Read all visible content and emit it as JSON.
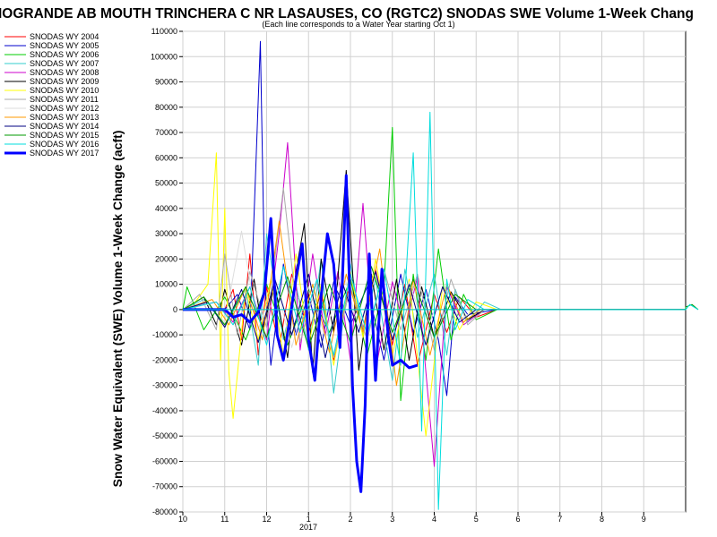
{
  "chart_data": {
    "type": "line",
    "title": "IOGRANDE AB MOUTH TRINCHERA C NR LASAUSES, CO (RGTC2) SNODAS SWE Volume 1-Week Chang",
    "subtitle": "(Each line corresponds to a Water Year starting Oct 1)",
    "ylabel": "Snow Water Equivalent (SWE) Volume 1-Week Change (acft)",
    "xlabel": "",
    "x_ticks": [
      "10",
      "11",
      "12",
      "1",
      "2",
      "3",
      "4",
      "5",
      "6",
      "7",
      "8",
      "9"
    ],
    "x_year_label": "2017",
    "xlim": [
      10,
      22.0
    ],
    "ylim": [
      -80000,
      110000
    ],
    "y_tick_step": 10000,
    "grid": true,
    "legend_position": "top-left",
    "series": [
      {
        "name": "SNODAS WY 2004",
        "color": "#ff0000",
        "width": 1,
        "x": [
          10.0,
          11.0,
          11.2,
          11.4,
          11.6,
          11.8,
          12.0,
          12.3,
          12.6,
          13.0,
          13.3,
          13.6,
          14.0,
          14.3,
          14.6,
          15.0,
          15.3,
          15.6,
          16.0,
          16.3,
          16.6,
          17.0,
          17.5,
          22.0
        ],
        "y": [
          0,
          0,
          8000,
          -12000,
          22000,
          -18000,
          9000,
          -15000,
          14000,
          -9000,
          7000,
          -20000,
          12000,
          -8000,
          16000,
          -14000,
          10000,
          -22000,
          6000,
          -9000,
          5000,
          -3000,
          0,
          0
        ]
      },
      {
        "name": "SNODAS WY 2005",
        "color": "#0000cc",
        "width": 1,
        "x": [
          10.0,
          11.0,
          11.3,
          11.6,
          11.75,
          11.85,
          11.95,
          12.1,
          12.4,
          12.7,
          13.0,
          13.3,
          13.6,
          14.0,
          14.4,
          14.8,
          15.2,
          15.5,
          15.8,
          16.1,
          16.3,
          16.5,
          16.8,
          17.5,
          22.0
        ],
        "y": [
          0,
          0,
          6000,
          -8000,
          60000,
          106000,
          12000,
          -22000,
          18000,
          -10000,
          6000,
          -15000,
          11000,
          -6000,
          9000,
          -20000,
          14000,
          -9000,
          8000,
          -12000,
          -34000,
          5000,
          -2000,
          0,
          0
        ]
      },
      {
        "name": "SNODAS WY 2006",
        "color": "#00cc00",
        "width": 1,
        "x": [
          10.0,
          10.1,
          10.5,
          11.0,
          11.5,
          12.0,
          12.5,
          13.0,
          13.5,
          14.0,
          14.4,
          14.8,
          15.0,
          15.2,
          15.5,
          15.8,
          16.1,
          16.4,
          16.7,
          17.0,
          17.5,
          22.0
        ],
        "y": [
          0,
          9000,
          -8000,
          5000,
          -12000,
          10000,
          -14000,
          8000,
          -9000,
          12000,
          -18000,
          9000,
          72000,
          -36000,
          14000,
          -20000,
          24000,
          -12000,
          6000,
          -4000,
          0,
          0
        ]
      },
      {
        "name": "SNODAS WY 2007",
        "color": "#33cccc",
        "width": 1,
        "x": [
          10.0,
          10.5,
          11.0,
          11.5,
          11.8,
          12.0,
          12.4,
          12.7,
          13.0,
          13.3,
          13.6,
          14.0,
          14.3,
          14.6,
          15.0,
          15.3,
          15.6,
          16.0,
          16.3,
          16.5,
          16.8,
          17.2,
          17.6,
          22.0
        ],
        "y": [
          0,
          4000,
          -6000,
          8000,
          -22000,
          30000,
          -12000,
          10000,
          -16000,
          20000,
          -33000,
          18000,
          -9000,
          12000,
          -28000,
          16000,
          -11000,
          14000,
          -18000,
          8000,
          -5000,
          3000,
          0,
          0
        ]
      },
      {
        "name": "SNODAS WY 2008",
        "color": "#cc00cc",
        "width": 1,
        "x": [
          10.0,
          10.8,
          11.2,
          11.6,
          12.0,
          12.3,
          12.5,
          12.8,
          13.1,
          13.4,
          13.7,
          14.0,
          14.3,
          14.6,
          15.0,
          15.3,
          15.6,
          16.0,
          16.3,
          16.7,
          17.2,
          22.0
        ],
        "y": [
          0,
          3000,
          -5000,
          9000,
          -12000,
          30000,
          66000,
          -16000,
          22000,
          -10000,
          15000,
          -20000,
          42000,
          -24000,
          11000,
          -8000,
          13000,
          -62000,
          9000,
          -6000,
          0,
          0
        ]
      },
      {
        "name": "SNODAS WY 2009",
        "color": "#000000",
        "width": 1,
        "x": [
          10.0,
          10.5,
          10.8,
          11.0,
          11.4,
          11.7,
          11.9,
          12.2,
          12.5,
          12.7,
          12.9,
          13.1,
          13.3,
          13.6,
          13.9,
          14.2,
          14.5,
          14.8,
          15.1,
          15.4,
          15.7,
          16.0,
          16.4,
          16.8,
          17.2,
          22.0
        ],
        "y": [
          0,
          5000,
          -6000,
          8000,
          -14000,
          12000,
          -8000,
          10000,
          -19000,
          15000,
          34000,
          -25000,
          20000,
          -9000,
          55000,
          -24000,
          14000,
          -16000,
          12000,
          -20000,
          9000,
          -11000,
          7000,
          -4000,
          0,
          0
        ]
      },
      {
        "name": "SNODAS WY 2010",
        "color": "#ffff00",
        "width": 1,
        "x": [
          10.0,
          10.3,
          10.6,
          10.8,
          10.9,
          11.0,
          11.1,
          11.2,
          11.5,
          11.8,
          12.1,
          12.4,
          12.7,
          13.0,
          13.3,
          13.6,
          14.0,
          14.3,
          14.6,
          15.0,
          15.4,
          15.8,
          16.2,
          16.6,
          17.0,
          17.5,
          22.0
        ],
        "y": [
          0,
          3000,
          10000,
          62000,
          -20000,
          40000,
          -25000,
          -43000,
          8000,
          -12000,
          12000,
          -18000,
          22000,
          -14000,
          10000,
          -22000,
          15000,
          -11000,
          20000,
          -18000,
          12000,
          -50000,
          9000,
          -8000,
          3000,
          0,
          0
        ]
      },
      {
        "name": "SNODAS WY 2011",
        "color": "#aaaaaa",
        "width": 1,
        "x": [
          10.0,
          10.4,
          10.8,
          11.0,
          11.3,
          11.6,
          12.0,
          12.4,
          12.8,
          13.2,
          13.6,
          14.0,
          14.4,
          14.8,
          15.2,
          15.6,
          16.0,
          16.4,
          16.8,
          17.2,
          22.0
        ],
        "y": [
          0,
          6000,
          -8000,
          22000,
          -10000,
          15000,
          -7000,
          48000,
          -13000,
          11000,
          -19000,
          9000,
          -12000,
          16000,
          -8000,
          14000,
          -16000,
          12000,
          -6000,
          0,
          0
        ]
      },
      {
        "name": "SNODAS WY 2012",
        "color": "#dddddd",
        "width": 1,
        "x": [
          10.0,
          10.6,
          11.0,
          11.4,
          11.8,
          12.2,
          12.6,
          13.0,
          13.4,
          13.8,
          14.2,
          14.6,
          15.0,
          15.4,
          15.8,
          16.2,
          16.6,
          17.0,
          22.0
        ],
        "y": [
          0,
          2000,
          -5000,
          31000,
          -8000,
          12000,
          -15000,
          9000,
          -11000,
          16000,
          -7000,
          13000,
          -10000,
          11000,
          -9000,
          8000,
          -4000,
          0,
          0
        ]
      },
      {
        "name": "SNODAS WY 2013",
        "color": "#ff9900",
        "width": 1,
        "x": [
          10.0,
          10.7,
          11.1,
          11.5,
          11.9,
          12.3,
          12.7,
          13.1,
          13.5,
          13.9,
          14.3,
          14.7,
          15.1,
          15.5,
          15.9,
          16.3,
          16.7,
          17.1,
          22.0
        ],
        "y": [
          0,
          4000,
          -6000,
          9000,
          -12000,
          35000,
          -14000,
          10000,
          -17000,
          14000,
          -9000,
          24000,
          -30000,
          12000,
          -18000,
          10000,
          -5000,
          0,
          0
        ]
      },
      {
        "name": "SNODAS WY 2014",
        "color": "#000080",
        "width": 1,
        "x": [
          10.0,
          10.6,
          11.0,
          11.4,
          11.8,
          12.2,
          12.6,
          13.0,
          13.4,
          13.8,
          14.2,
          14.6,
          15.0,
          15.4,
          15.8,
          16.2,
          16.6,
          17.0,
          22.0
        ],
        "y": [
          0,
          3000,
          -7000,
          8000,
          -13000,
          12000,
          -10000,
          14000,
          -19000,
          11000,
          -9000,
          15000,
          -12000,
          10000,
          -14000,
          9000,
          -5000,
          0,
          0
        ]
      },
      {
        "name": "SNODAS WY 2015",
        "color": "#009900",
        "width": 1,
        "x": [
          10.0,
          10.5,
          11.0,
          11.5,
          12.0,
          12.5,
          13.0,
          13.5,
          14.0,
          14.5,
          15.0,
          15.5,
          16.0,
          16.5,
          17.0,
          22.0,
          22.0,
          22.15,
          22.3
        ],
        "y": [
          0,
          5000,
          -6000,
          9000,
          -11000,
          13000,
          -15000,
          10000,
          -13000,
          17000,
          -9000,
          12000,
          -11000,
          6000,
          0,
          0,
          1000,
          2000,
          0
        ]
      },
      {
        "name": "SNODAS WY 2016",
        "color": "#00dddd",
        "width": 1,
        "x": [
          10.0,
          10.8,
          11.2,
          11.6,
          12.0,
          12.4,
          12.8,
          13.2,
          13.6,
          14.0,
          14.4,
          14.8,
          15.2,
          15.5,
          15.7,
          15.9,
          16.1,
          16.3,
          16.5,
          16.8,
          17.2,
          22.0,
          22.1,
          22.3
        ],
        "y": [
          0,
          3000,
          -6000,
          9000,
          -14000,
          17000,
          -9000,
          12000,
          -18000,
          14000,
          -10000,
          16000,
          -22000,
          62000,
          -48000,
          78000,
          -79000,
          12000,
          -8000,
          4000,
          0,
          0,
          2000,
          0
        ]
      },
      {
        "name": "SNODAS WY 2017",
        "color": "#0000ff",
        "width": 3,
        "x": [
          10.0,
          11.0,
          11.2,
          11.4,
          11.6,
          11.8,
          11.95,
          12.1,
          12.25,
          12.4,
          12.55,
          12.7,
          12.85,
          13.0,
          13.15,
          13.3,
          13.45,
          13.6,
          13.75,
          13.9,
          14.05,
          14.15,
          14.25,
          14.35,
          14.45,
          14.6,
          14.75,
          14.9,
          15.0,
          15.2,
          15.4,
          15.6
        ],
        "y": [
          0,
          0,
          -3000,
          -2000,
          -5000,
          -1000,
          7000,
          36000,
          -10000,
          -20000,
          -4000,
          12000,
          26000,
          -12000,
          -28000,
          5000,
          30000,
          18000,
          -15000,
          53000,
          -30000,
          -60000,
          -72000,
          -38000,
          22000,
          -28000,
          16000,
          -10000,
          -22000,
          -20000,
          -23000,
          -22000
        ]
      }
    ]
  }
}
